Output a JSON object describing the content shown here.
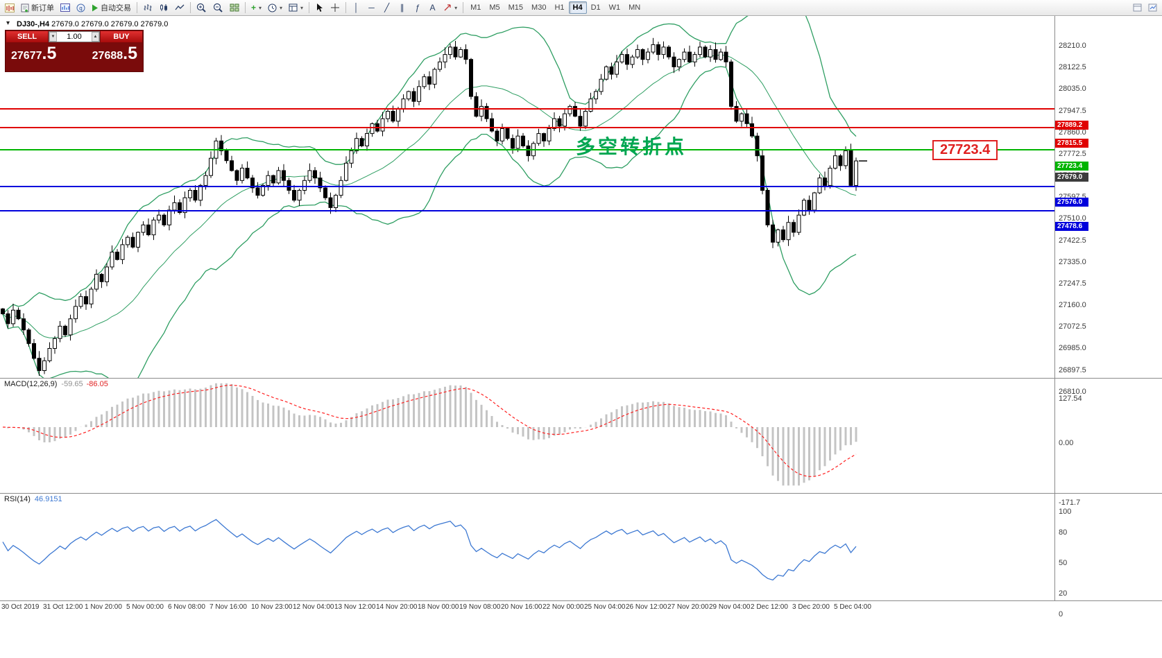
{
  "colors": {
    "level_red": "#e00000",
    "level_green": "#00b400",
    "level_blue": "#0000dc",
    "band_green": "#2e9e62",
    "macd_signal_red": "#ff2020",
    "macd_hist_silver": "#c4c4c4",
    "rsi_blue": "#3c78d2",
    "annotation_green": "#00a651",
    "callout_red": "#e02020",
    "current_tag_dark": "#3c3c3c",
    "panel_maroon": "#7a0b0b",
    "candle_up": "#ffffff",
    "candle_down": "#000000"
  },
  "toolbar": {
    "new_order": "新订单",
    "autotrading": "自动交易",
    "timeframes": [
      "M1",
      "M5",
      "M15",
      "M30",
      "H1",
      "H4",
      "D1",
      "W1",
      "MN"
    ],
    "active_timeframe": "H4",
    "glyphs": {
      "vertical_line": "│",
      "horizontal_line": "─",
      "trendline": "╱",
      "channel": "∥",
      "fibonacci": "ƒ",
      "text_tool": "A",
      "indicators_plus": "+"
    }
  },
  "chart": {
    "symbol_period": "DJ30-,H4",
    "ohlc": "27679.0 27679.0 27679.0 27679.0",
    "annotation": "多空转折点",
    "callout_price": "27723.4",
    "current_price": "27679.0",
    "levels": [
      {
        "price": 27889.2,
        "label": "27889.2",
        "color": "red"
      },
      {
        "price": 27815.5,
        "label": "27815.5",
        "color": "red"
      },
      {
        "price": 27723.4,
        "label": "27723.4",
        "color": "green"
      },
      {
        "price": 27576.0,
        "label": "27576.0",
        "color": "blue"
      },
      {
        "price": 27478.6,
        "label": "27478.6",
        "color": "blue"
      }
    ],
    "axis_ticks": [
      "28210.0",
      "28122.5",
      "28035.0",
      "27947.5",
      "27860.0",
      "27772.5",
      "27685.0",
      "27597.5",
      "27510.0",
      "27422.5",
      "27335.0",
      "27247.5",
      "27160.0",
      "27072.5",
      "26985.0",
      "26897.5",
      "26810.0"
    ]
  },
  "one_click": {
    "sell_label": "SELL",
    "buy_label": "BUY",
    "volume": "1.00",
    "sell_price_int": "27677",
    "sell_price_frac": ".5",
    "buy_price_int": "27688",
    "buy_price_frac": ".5"
  },
  "macd": {
    "label": "MACD(12,26,9)",
    "value_main": "-59.65",
    "value_signal": "-86.05",
    "axis": [
      "127.54",
      "0.00",
      "-171.7"
    ]
  },
  "rsi": {
    "label": "RSI(14)",
    "value": "46.9151",
    "axis": [
      "100",
      "80",
      "50",
      "20",
      "0"
    ]
  },
  "time_axis": [
    "30 Oct 2019",
    "31 Oct 12:00",
    "1 Nov 20:00",
    "5 Nov 00:00",
    "6 Nov 08:00",
    "7 Nov 16:00",
    "10 Nov 23:00",
    "12 Nov 04:00",
    "13 Nov 12:00",
    "14 Nov 20:00",
    "18 Nov 00:00",
    "19 Nov 08:00",
    "20 Nov 16:00",
    "22 Nov 00:00",
    "25 Nov 04:00",
    "26 Nov 12:00",
    "27 Nov 20:00",
    "29 Nov 04:00",
    "2 Dec 12:00",
    "3 Dec 20:00",
    "5 Dec 04:00"
  ],
  "chart_data": {
    "type": "candlestick",
    "symbol": "DJ30-",
    "period": "H4",
    "ylim": [
      26810,
      28266
    ],
    "indicators": [
      "Bollinger Bands (green)",
      "MACD(12,26,9)",
      "RSI(14)"
    ],
    "closes": [
      27060,
      27020,
      27075,
      27040,
      26995,
      26940,
      26880,
      26830,
      26870,
      26920,
      26960,
      27010,
      26975,
      27040,
      27090,
      27130,
      27100,
      27160,
      27220,
      27190,
      27250,
      27310,
      27280,
      27340,
      27370,
      27330,
      27390,
      27420,
      27380,
      27440,
      27460,
      27420,
      27480,
      27510,
      27470,
      27530,
      27560,
      27520,
      27580,
      27620,
      27690,
      27760,
      27720,
      27680,
      27640,
      27600,
      27650,
      27610,
      27570,
      27540,
      27580,
      27620,
      27590,
      27640,
      27600,
      27560,
      27520,
      27560,
      27600,
      27640,
      27610,
      27570,
      27530,
      27490,
      27540,
      27600,
      27670,
      27720,
      27770,
      27740,
      27790,
      27830,
      27800,
      27850,
      27880,
      27840,
      27890,
      27930,
      27960,
      27920,
      27980,
      28020,
      27990,
      28050,
      28080,
      28110,
      28140,
      28100,
      28130,
      28090,
      27940,
      27860,
      27900,
      27850,
      27800,
      27760,
      27810,
      27770,
      27730,
      27780,
      27740,
      27700,
      27750,
      27790,
      27760,
      27810,
      27850,
      27820,
      27870,
      27900,
      27860,
      27820,
      27880,
      27930,
      27960,
      28010,
      28060,
      28030,
      28080,
      28110,
      28070,
      28100,
      28130,
      28090,
      28120,
      28150,
      28110,
      28140,
      28100,
      28060,
      28090,
      28120,
      28080,
      28110,
      28140,
      28100,
      28130,
      28090,
      28120,
      28080,
      27900,
      27840,
      27870,
      27830,
      27780,
      27700,
      27560,
      27420,
      27350,
      27400,
      27360,
      27430,
      27390,
      27460,
      27520,
      27480,
      27550,
      27610,
      27580,
      27650,
      27700,
      27660,
      27720,
      27580,
      27679
    ]
  }
}
